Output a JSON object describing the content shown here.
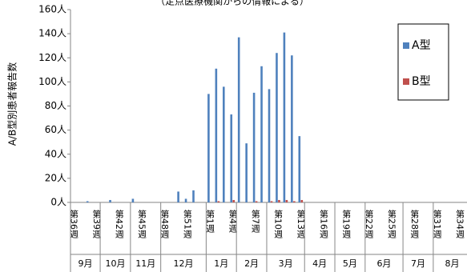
{
  "chart_data": {
    "type": "bar",
    "subtitle": "（定点医療機関からの情報による）",
    "y_label": "A/B型別患者報告数",
    "categories": [
      "第36週",
      null,
      null,
      "第39週",
      null,
      null,
      "第42週",
      null,
      null,
      "第45週",
      null,
      null,
      "第48週",
      null,
      null,
      "第51週",
      null,
      null,
      "第1週",
      null,
      null,
      "第4週",
      null,
      null,
      "第7週",
      null,
      null,
      "第10週",
      null,
      null,
      "第13週",
      null,
      null,
      "第16週",
      null,
      null,
      "第19週",
      null,
      null,
      "第22週",
      null,
      null,
      "第25週",
      null,
      null,
      "第28週",
      null,
      null,
      "第31週",
      null,
      null,
      "第34週",
      null
    ],
    "months": [
      "9月",
      "10月",
      "11月",
      "12月",
      "1月",
      "2月",
      "3月",
      "4月",
      "5月",
      "6月",
      "7月",
      "8月"
    ],
    "series": [
      {
        "name": "A型",
        "color": "#4f81bd",
        "values": [
          0,
          0,
          1,
          0,
          0,
          2,
          0,
          0,
          3,
          0,
          0,
          0,
          0,
          0,
          9,
          3,
          10,
          0,
          90,
          111,
          96,
          73,
          137,
          49,
          91,
          113,
          94,
          124,
          141,
          122,
          55,
          null,
          null,
          null,
          null,
          null,
          null,
          null,
          null,
          null,
          null,
          null,
          null,
          null,
          null,
          null,
          null,
          null,
          null,
          null,
          null,
          null,
          null
        ]
      },
      {
        "name": "B型",
        "color": "#c0504d",
        "values": [
          0,
          0,
          0,
          0,
          0,
          0,
          0,
          0,
          0,
          0,
          0,
          0,
          0,
          0,
          0,
          0,
          0,
          0,
          0,
          1,
          0,
          2,
          0,
          0,
          1,
          0,
          1,
          2,
          2,
          1,
          2,
          null,
          null,
          null,
          null,
          null,
          null,
          null,
          null,
          null,
          null,
          null,
          null,
          null,
          null,
          null,
          null,
          null,
          null,
          null,
          null,
          null,
          null
        ]
      }
    ],
    "ylim": [
      0,
      160
    ],
    "yticks": [
      {
        "value": 0,
        "label": "0人"
      },
      {
        "value": 20,
        "label": "20人"
      },
      {
        "value": 40,
        "label": "40人"
      },
      {
        "value": 60,
        "label": "60人"
      },
      {
        "value": 80,
        "label": "80人"
      },
      {
        "value": 100,
        "label": "100人"
      },
      {
        "value": 120,
        "label": "120人"
      },
      {
        "value": 140,
        "label": "140人"
      },
      {
        "value": 160,
        "label": "160人"
      }
    ],
    "grid": false,
    "legend": "right"
  }
}
